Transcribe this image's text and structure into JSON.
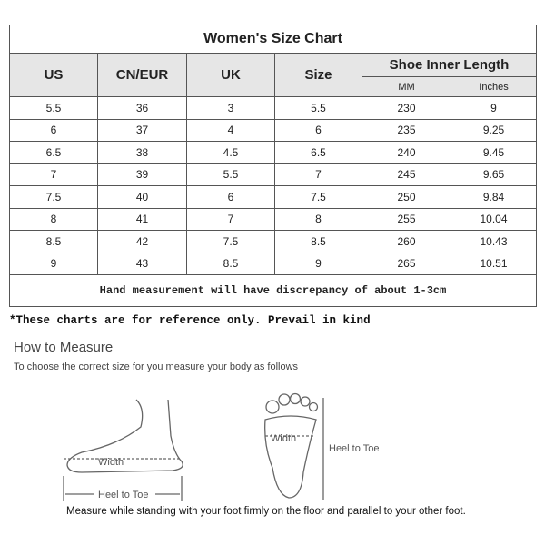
{
  "title": "Women's Size Chart",
  "headers": {
    "us": "US",
    "cn_eur": "CN/EUR",
    "uk": "UK",
    "size": "Size",
    "length": "Shoe Inner Length",
    "mm": "MM",
    "inches": "Inches"
  },
  "rows": [
    [
      "5.5",
      "36",
      "3",
      "5.5",
      "230",
      "9"
    ],
    [
      "6",
      "37",
      "4",
      "6",
      "235",
      "9.25"
    ],
    [
      "6.5",
      "38",
      "4.5",
      "6.5",
      "240",
      "9.45"
    ],
    [
      "7",
      "39",
      "5.5",
      "7",
      "245",
      "9.65"
    ],
    [
      "7.5",
      "40",
      "6",
      "7.5",
      "250",
      "9.84"
    ],
    [
      "8",
      "41",
      "7",
      "8",
      "255",
      "10.04"
    ],
    [
      "8.5",
      "42",
      "7.5",
      "8.5",
      "260",
      "10.43"
    ],
    [
      "9",
      "43",
      "8.5",
      "9",
      "265",
      "10.51"
    ]
  ],
  "footer": "Hand measurement will have discrepancy of about 1-3cm",
  "note": "*These charts are for reference only. Prevail in kind",
  "how_to": {
    "heading": "How to Measure",
    "subtitle": "To choose the correct size for you measure your body as follows",
    "labels": {
      "width_side": "Width",
      "heel_to_toe_side": "Heel to Toe",
      "width_sole": "Width",
      "heel_to_toe_sole": "Heel to Toe"
    },
    "caption": "Measure while standing with your foot firmly on the floor and parallel to your other foot."
  }
}
